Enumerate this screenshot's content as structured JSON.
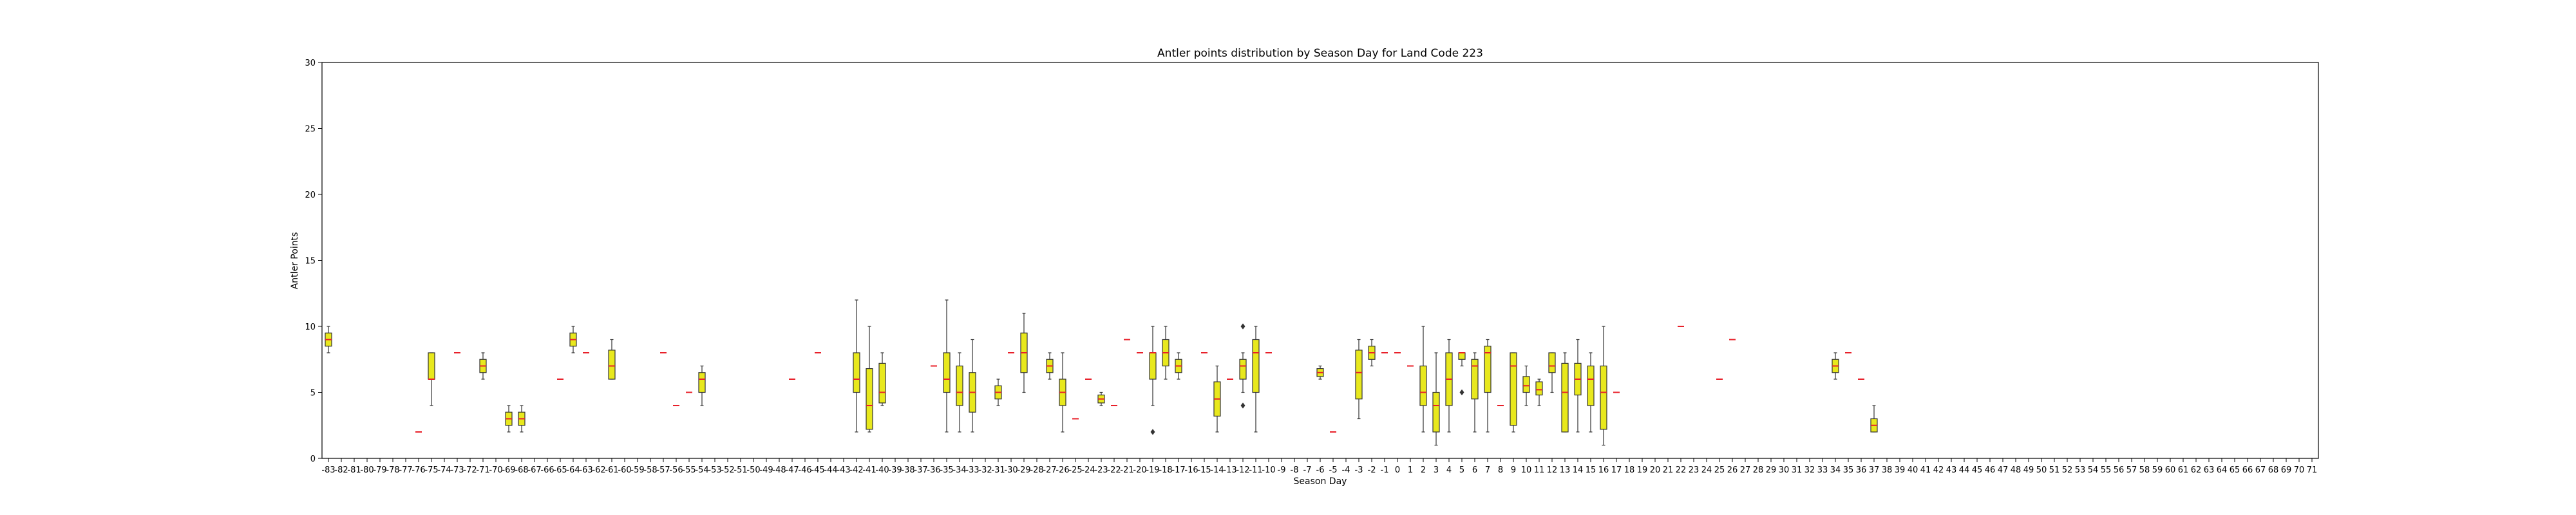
{
  "colors": {
    "box_fill": "#e8e81d",
    "median": "#e8202a",
    "outline": "#333333"
  },
  "chart_data": {
    "type": "box",
    "title": "Antler points distribution by Season Day for Land Code 223",
    "xlabel": "Season Day",
    "ylabel": "Antler Points",
    "ylim": [
      0,
      30
    ],
    "yticks": [
      0,
      5,
      10,
      15,
      20,
      25,
      30
    ],
    "x_range": [
      -83,
      71
    ],
    "grid": false,
    "boxes": [
      {
        "day": -83,
        "min": 8,
        "q1": 8.5,
        "median": 9,
        "q3": 9.5,
        "max": 10
      },
      {
        "day": -76,
        "min": 2,
        "q1": 2,
        "median": 2,
        "q3": 2,
        "max": 2
      },
      {
        "day": -75,
        "min": 4,
        "q1": 6,
        "median": 6,
        "q3": 8,
        "max": 8
      },
      {
        "day": -73,
        "min": 8,
        "q1": 8,
        "median": 8,
        "q3": 8,
        "max": 8
      },
      {
        "day": -71,
        "min": 6,
        "q1": 6.5,
        "median": 7,
        "q3": 7.5,
        "max": 8
      },
      {
        "day": -69,
        "min": 2,
        "q1": 2.5,
        "median": 3,
        "q3": 3.5,
        "max": 4
      },
      {
        "day": -68,
        "min": 2,
        "q1": 2.5,
        "median": 3,
        "q3": 3.5,
        "max": 4
      },
      {
        "day": -65,
        "min": 6,
        "q1": 6,
        "median": 6,
        "q3": 6,
        "max": 6
      },
      {
        "day": -64,
        "min": 8,
        "q1": 8.5,
        "median": 9,
        "q3": 9.5,
        "max": 10
      },
      {
        "day": -63,
        "min": 8,
        "q1": 8,
        "median": 8,
        "q3": 8,
        "max": 8
      },
      {
        "day": -61,
        "min": 6,
        "q1": 6,
        "median": 7,
        "q3": 8.2,
        "max": 9
      },
      {
        "day": -57,
        "min": 8,
        "q1": 8,
        "median": 8,
        "q3": 8,
        "max": 8
      },
      {
        "day": -56,
        "min": 4,
        "q1": 4,
        "median": 4,
        "q3": 4,
        "max": 4
      },
      {
        "day": -55,
        "min": 5,
        "q1": 5,
        "median": 5,
        "q3": 5,
        "max": 5
      },
      {
        "day": -54,
        "min": 4,
        "q1": 5,
        "median": 6,
        "q3": 6.5,
        "max": 7
      },
      {
        "day": -47,
        "min": 6,
        "q1": 6,
        "median": 6,
        "q3": 6,
        "max": 6
      },
      {
        "day": -45,
        "min": 8,
        "q1": 8,
        "median": 8,
        "q3": 8,
        "max": 8
      },
      {
        "day": -42,
        "min": 2,
        "q1": 5,
        "median": 6,
        "q3": 8,
        "max": 12
      },
      {
        "day": -41,
        "min": 2,
        "q1": 2.2,
        "median": 4,
        "q3": 6.8,
        "max": 10
      },
      {
        "day": -40,
        "min": 4,
        "q1": 4.2,
        "median": 5,
        "q3": 7.2,
        "max": 8
      },
      {
        "day": -36,
        "min": 7,
        "q1": 7,
        "median": 7,
        "q3": 7,
        "max": 7
      },
      {
        "day": -35,
        "min": 2,
        "q1": 5,
        "median": 6,
        "q3": 8,
        "max": 12
      },
      {
        "day": -34,
        "min": 2,
        "q1": 4,
        "median": 5,
        "q3": 7,
        "max": 8
      },
      {
        "day": -33,
        "min": 2,
        "q1": 3.5,
        "median": 5,
        "q3": 6.5,
        "max": 9
      },
      {
        "day": -31,
        "min": 4,
        "q1": 4.5,
        "median": 5,
        "q3": 5.5,
        "max": 6
      },
      {
        "day": -30,
        "min": 8,
        "q1": 8,
        "median": 8,
        "q3": 8,
        "max": 8
      },
      {
        "day": -29,
        "min": 5,
        "q1": 6.5,
        "median": 8,
        "q3": 9.5,
        "max": 11
      },
      {
        "day": -27,
        "min": 6,
        "q1": 6.5,
        "median": 7,
        "q3": 7.5,
        "max": 8
      },
      {
        "day": -26,
        "min": 2,
        "q1": 4,
        "median": 5,
        "q3": 6,
        "max": 8
      },
      {
        "day": -25,
        "min": 3,
        "q1": 3,
        "median": 3,
        "q3": 3,
        "max": 3
      },
      {
        "day": -24,
        "min": 6,
        "q1": 6,
        "median": 6,
        "q3": 6,
        "max": 6
      },
      {
        "day": -23,
        "min": 4,
        "q1": 4.2,
        "median": 4.5,
        "q3": 4.8,
        "max": 5
      },
      {
        "day": -22,
        "min": 4,
        "q1": 4,
        "median": 4,
        "q3": 4,
        "max": 4
      },
      {
        "day": -21,
        "min": 9,
        "q1": 9,
        "median": 9,
        "q3": 9,
        "max": 9
      },
      {
        "day": -20,
        "min": 8,
        "q1": 8,
        "median": 8,
        "q3": 8,
        "max": 8
      },
      {
        "day": -19,
        "min": 4,
        "q1": 6,
        "median": 8,
        "q3": 8,
        "max": 10,
        "outliers": [
          2
        ]
      },
      {
        "day": -18,
        "min": 6,
        "q1": 7,
        "median": 8,
        "q3": 9,
        "max": 10
      },
      {
        "day": -17,
        "min": 6,
        "q1": 6.5,
        "median": 7,
        "q3": 7.5,
        "max": 8
      },
      {
        "day": -15,
        "min": 8,
        "q1": 8,
        "median": 8,
        "q3": 8,
        "max": 8
      },
      {
        "day": -14,
        "min": 2,
        "q1": 3.2,
        "median": 4.5,
        "q3": 5.8,
        "max": 7
      },
      {
        "day": -13,
        "min": 6,
        "q1": 6,
        "median": 6,
        "q3": 6,
        "max": 6
      },
      {
        "day": -12,
        "min": 5,
        "q1": 6,
        "median": 7,
        "q3": 7.5,
        "max": 8,
        "outliers": [
          10,
          4
        ]
      },
      {
        "day": -11,
        "min": 2,
        "q1": 5,
        "median": 8,
        "q3": 9,
        "max": 10
      },
      {
        "day": -10,
        "min": 8,
        "q1": 8,
        "median": 8,
        "q3": 8,
        "max": 8
      },
      {
        "day": -6,
        "min": 6,
        "q1": 6.2,
        "median": 6.5,
        "q3": 6.8,
        "max": 7
      },
      {
        "day": -5,
        "min": 2,
        "q1": 2,
        "median": 2,
        "q3": 2,
        "max": 2
      },
      {
        "day": -3,
        "min": 3,
        "q1": 4.5,
        "median": 6.5,
        "q3": 8.2,
        "max": 9
      },
      {
        "day": -2,
        "min": 7,
        "q1": 7.5,
        "median": 8,
        "q3": 8.5,
        "max": 9
      },
      {
        "day": -1,
        "min": 8,
        "q1": 8,
        "median": 8,
        "q3": 8,
        "max": 8
      },
      {
        "day": 0,
        "min": 8,
        "q1": 8,
        "median": 8,
        "q3": 8,
        "max": 8
      },
      {
        "day": 1,
        "min": 7,
        "q1": 7,
        "median": 7,
        "q3": 7,
        "max": 7
      },
      {
        "day": 2,
        "min": 2,
        "q1": 4,
        "median": 5,
        "q3": 7,
        "max": 10
      },
      {
        "day": 3,
        "min": 1,
        "q1": 2,
        "median": 4,
        "q3": 5,
        "max": 8
      },
      {
        "day": 4,
        "min": 2,
        "q1": 4,
        "median": 6,
        "q3": 8,
        "max": 9
      },
      {
        "day": 5,
        "min": 7,
        "q1": 7.5,
        "median": 8,
        "q3": 8,
        "max": 8,
        "outliers": [
          5
        ]
      },
      {
        "day": 6,
        "min": 2,
        "q1": 4.5,
        "median": 7,
        "q3": 7.5,
        "max": 8
      },
      {
        "day": 7,
        "min": 2,
        "q1": 5,
        "median": 8,
        "q3": 8.5,
        "max": 9
      },
      {
        "day": 8,
        "min": 4,
        "q1": 4,
        "median": 4,
        "q3": 4,
        "max": 4
      },
      {
        "day": 9,
        "min": 2,
        "q1": 2.5,
        "median": 7,
        "q3": 8,
        "max": 8
      },
      {
        "day": 10,
        "min": 4,
        "q1": 5,
        "median": 5.5,
        "q3": 6.2,
        "max": 7
      },
      {
        "day": 11,
        "min": 4,
        "q1": 4.8,
        "median": 5.2,
        "q3": 5.8,
        "max": 6
      },
      {
        "day": 12,
        "min": 5,
        "q1": 6.5,
        "median": 7,
        "q3": 8,
        "max": 8
      },
      {
        "day": 13,
        "min": 2,
        "q1": 2,
        "median": 5,
        "q3": 7.2,
        "max": 8
      },
      {
        "day": 14,
        "min": 2,
        "q1": 4.8,
        "median": 6,
        "q3": 7.2,
        "max": 9
      },
      {
        "day": 15,
        "min": 2,
        "q1": 4,
        "median": 6,
        "q3": 7,
        "max": 8
      },
      {
        "day": 16,
        "min": 1,
        "q1": 2.2,
        "median": 5,
        "q3": 7,
        "max": 10
      },
      {
        "day": 17,
        "min": 5,
        "q1": 5,
        "median": 5,
        "q3": 5,
        "max": 5
      },
      {
        "day": 22,
        "min": 10,
        "q1": 10,
        "median": 10,
        "q3": 10,
        "max": 10
      },
      {
        "day": 25,
        "min": 6,
        "q1": 6,
        "median": 6,
        "q3": 6,
        "max": 6
      },
      {
        "day": 26,
        "min": 9,
        "q1": 9,
        "median": 9,
        "q3": 9,
        "max": 9
      },
      {
        "day": 34,
        "min": 6,
        "q1": 6.5,
        "median": 7,
        "q3": 7.5,
        "max": 8
      },
      {
        "day": 35,
        "min": 8,
        "q1": 8,
        "median": 8,
        "q3": 8,
        "max": 8
      },
      {
        "day": 36,
        "min": 6,
        "q1": 6,
        "median": 6,
        "q3": 6,
        "max": 6
      },
      {
        "day": 37,
        "min": 2,
        "q1": 2,
        "median": 2.5,
        "q3": 3,
        "max": 4
      }
    ]
  }
}
